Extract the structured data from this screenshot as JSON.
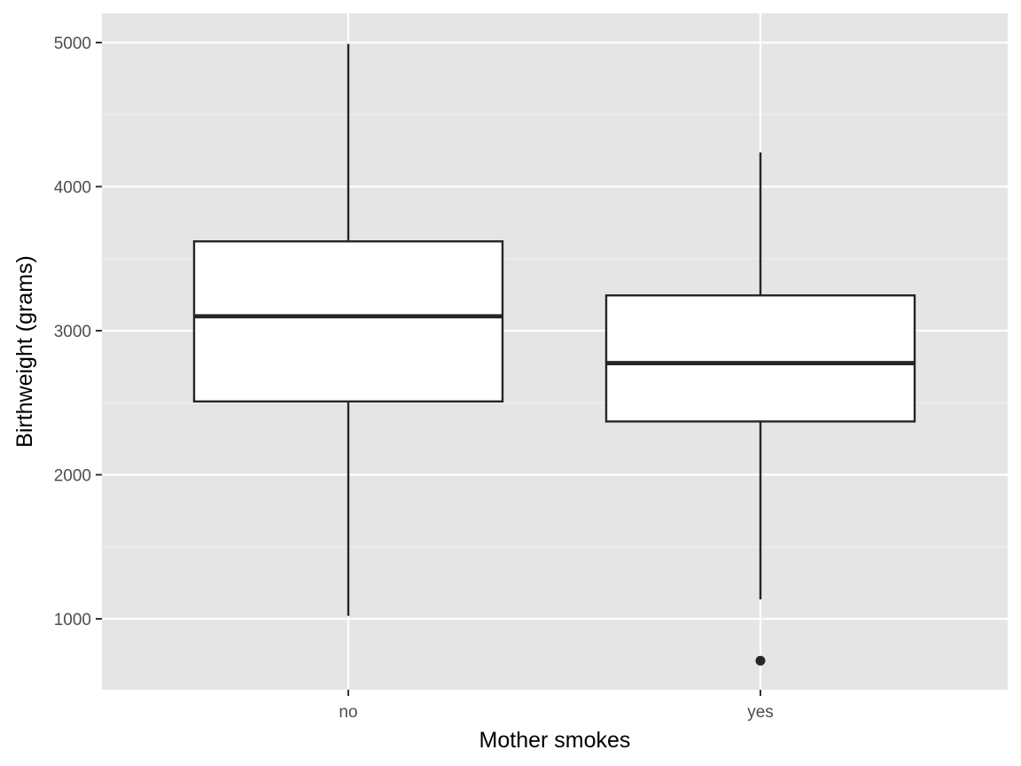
{
  "chart_data": {
    "type": "boxplot",
    "xlabel": "Mother smokes",
    "ylabel": "Birthweight (grams)",
    "categories": [
      "no",
      "yes"
    ],
    "ylim": [
      500,
      5200
    ],
    "yticks": [
      1000,
      2000,
      3000,
      4000,
      5000
    ],
    "y_minor_gridlines": [
      1500,
      2500,
      3500,
      4500
    ],
    "grid": true,
    "legend": "none",
    "boxes": [
      {
        "category": "no",
        "whisker_low": 1021,
        "q1": 2509,
        "median": 3100,
        "q3": 3620,
        "whisker_high": 4990,
        "outliers": []
      },
      {
        "category": "yes",
        "whisker_low": 1135,
        "q1": 2370,
        "median": 2775,
        "q3": 3245,
        "whisker_high": 4238,
        "outliers": [
          709
        ]
      }
    ]
  },
  "colors": {
    "panel_background": "#e5e5e5",
    "grid_major": "#ffffff",
    "grid_minor": "#f2f2f2",
    "box_fill": "#ffffff",
    "box_stroke": "#262626",
    "tick_text": "#4d4d4d",
    "tick_mark": "#333333",
    "axis_title": "#000000"
  }
}
